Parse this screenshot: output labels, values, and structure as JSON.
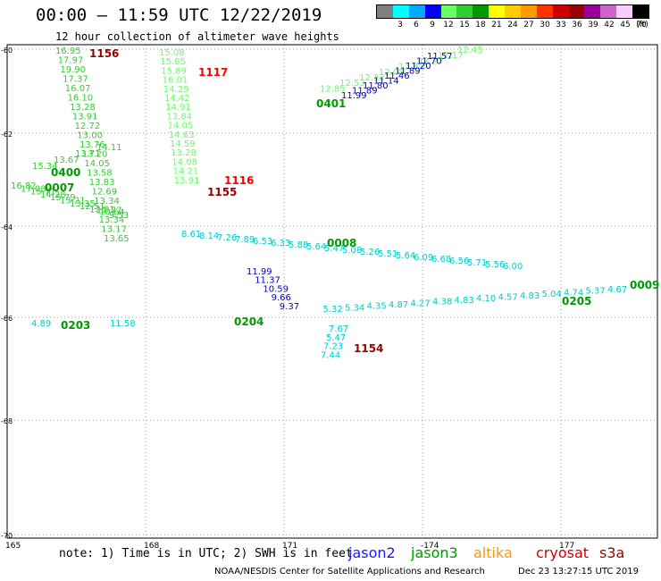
{
  "title": "00:00 – 11:59 UTC 12/22/2019",
  "subtitle": "12 hour collection of altimeter wave heights",
  "legend": {
    "unit": "(ft)",
    "colors": [
      "#808080",
      "#00ffff",
      "#00aaff",
      "#0000ff",
      "#66ff66",
      "#33cc33",
      "#009900",
      "#ffff00",
      "#ffcc00",
      "#ff9900",
      "#ff3300",
      "#cc0000",
      "#990000",
      "#990099",
      "#cc66cc",
      "#ffccff",
      "#000000"
    ],
    "ticks": [
      "3",
      "6",
      "9",
      "12",
      "15",
      "18",
      "21",
      "24",
      "27",
      "30",
      "33",
      "36",
      "39",
      "42",
      "45",
      "70"
    ]
  },
  "axes": {
    "lon_labels": [
      "165",
      "168",
      "171",
      "-174",
      "177"
    ],
    "lat_labels": [
      "-60",
      "-62",
      "-64",
      "-66",
      "-68",
      "-70"
    ],
    "grid_color": "#999999"
  },
  "satellites": {
    "jason2": {
      "name": "jason2",
      "color": "#1a1aff"
    },
    "jason3": {
      "name": "jason3",
      "color": "#009900"
    },
    "altika": {
      "name": "altika",
      "color": "#ff9900"
    },
    "cryosat": {
      "name": "cryosat",
      "color": "#cc0000"
    },
    "s3a": {
      "name": "s3a",
      "color": "#990000"
    }
  },
  "chart_data": {
    "type": "scatter",
    "title": "12 hour collection of altimeter wave heights",
    "unit": "ft",
    "time_labels": [
      {
        "text": "1156",
        "color": "#990000"
      },
      {
        "text": "1117",
        "color": "#ff0000"
      },
      {
        "text": "1116",
        "color": "#ff0000"
      },
      {
        "text": "1155",
        "color": "#990000"
      },
      {
        "text": "1154",
        "color": "#990000"
      },
      {
        "text": "0401",
        "color": "#009900"
      },
      {
        "text": "0400",
        "color": "#009900"
      },
      {
        "text": "0007",
        "color": "#009900"
      },
      {
        "text": "0008",
        "color": "#009900"
      },
      {
        "text": "0009",
        "color": "#009900"
      },
      {
        "text": "0205",
        "color": "#009900"
      },
      {
        "text": "0204",
        "color": "#009900"
      },
      {
        "text": "0203",
        "color": "#009900"
      }
    ],
    "tracks": [
      {
        "id": "t1156",
        "color": "#33cc33",
        "values": [
          "16.95",
          "17.97",
          "19.90",
          "17.37",
          "16.07",
          "16.10",
          "13.28",
          "13.91",
          "12.72",
          "13.00",
          "13.76",
          "13.20",
          "14.05",
          "13.58",
          "13.83",
          "12.69",
          "13.34",
          "12.77",
          "13.34",
          "13.17",
          "13.65"
        ]
      },
      {
        "id": "t1117",
        "color": "#66ff66",
        "values": [
          "15.08",
          "15.85",
          "15.89",
          "16.01",
          "14.29",
          "14.42",
          "14.91",
          "13.84",
          "14.05",
          "14.63",
          "14.59",
          "13.28",
          "14.08",
          "14.21",
          "13.91"
        ]
      },
      {
        "id": "t0401",
        "color": "#66ff66",
        "values": [
          "12.45",
          "12.17",
          "12.27",
          "12.32",
          "12.08",
          "12.32",
          "12.53",
          "12.85"
        ]
      },
      {
        "id": "t0401b",
        "color": "#0000cc",
        "values": [
          "11.57",
          "11.70",
          "11.20",
          "11.89",
          "11.46",
          "11.14",
          "11.80",
          "11.89",
          "11.99"
        ]
      },
      {
        "id": "t0400",
        "color": "#33cc33",
        "values": [
          "15.34",
          "13.67",
          "13.71",
          "14.11"
        ]
      },
      {
        "id": "t0007",
        "color": "#33cc33",
        "values": [
          "16.82",
          "17.08",
          "15.71",
          "14.28",
          "15.79",
          "13.21",
          "13.35",
          "12.51",
          "12.01",
          "10.64",
          "9.53"
        ]
      },
      {
        "id": "t0008",
        "color": "#00cccc",
        "values": [
          "8.61",
          "8.14",
          "7.26",
          "7.89",
          "6.53",
          "6.33",
          "5.88",
          "5.64",
          "5.47",
          "5.08",
          "5.26",
          "5.51",
          "5.64",
          "6.09",
          "6.68",
          "6.56",
          "5.71",
          "5.56",
          "6.00"
        ]
      },
      {
        "id": "t1155",
        "color": "#0000cc",
        "values": [
          "11.99",
          "11.37",
          "10.59",
          "9.66",
          "9.37"
        ]
      },
      {
        "id": "t0205",
        "color": "#00cccc",
        "values": [
          "4.67",
          "5.37",
          "4.74",
          "5.04",
          "4.83",
          "4.57",
          "4.10",
          "4.83",
          "4.38",
          "4.27",
          "4.87",
          "4.35",
          "5.34",
          "5.32"
        ]
      },
      {
        "id": "t1154",
        "color": "#00cccc",
        "values": [
          "7.67",
          "5.47",
          "7.23",
          "7.44"
        ]
      },
      {
        "id": "t0203",
        "color": "#00cccc",
        "values": [
          "4.89",
          "11.58"
        ]
      }
    ]
  },
  "note": "note: 1) Time is in UTC; 2) SWH is in feet",
  "footer_left": "NOAA/NESDIS Center for Satellite Applications and Research",
  "footer_right": "Dec 23 13:27:15 UTC 2019"
}
